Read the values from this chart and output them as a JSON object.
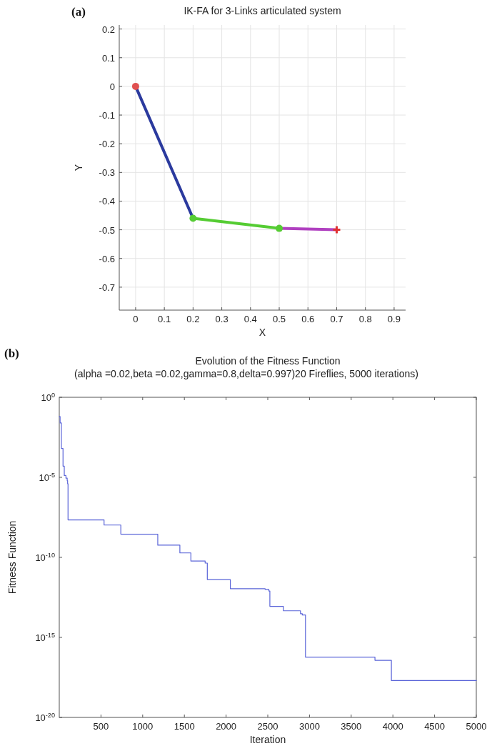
{
  "chart_data": [
    {
      "type": "line",
      "title": "IK-FA for 3-Links articulated system",
      "xlabel": "X",
      "ylabel": "Y",
      "annotations": [
        "(a)"
      ],
      "xlim": [
        -0.057,
        0.94
      ],
      "xticks": [
        0,
        0.1,
        0.2,
        0.3,
        0.4,
        0.5,
        0.6,
        0.7,
        0.8,
        0.9
      ],
      "ylim": [
        -0.78,
        0.214
      ],
      "yticks": [
        -0.7,
        -0.6,
        -0.5,
        -0.4,
        -0.3,
        -0.2,
        -0.1,
        0,
        0.1,
        0.2
      ],
      "grid": true,
      "series": [
        {
          "color": "#2b3a9e",
          "x": [
            0,
            0.2
          ],
          "values": [
            0,
            -0.46
          ]
        },
        {
          "color": "#55cc33",
          "x": [
            0.2,
            0.5
          ],
          "values": [
            -0.46,
            -0.495
          ]
        },
        {
          "color": "#b040c0",
          "x": [
            0.5,
            0.7
          ],
          "values": [
            -0.495,
            -0.5
          ]
        },
        {
          "type": "scatter",
          "marker": "circle",
          "color": "#e05050",
          "x": [
            0
          ],
          "values": [
            0
          ]
        },
        {
          "type": "scatter",
          "marker": "circle",
          "color": "#55cc33",
          "x": [
            0.2,
            0.5
          ],
          "values": [
            -0.46,
            -0.495
          ]
        },
        {
          "type": "scatter",
          "marker": "cross",
          "color": "#e03030",
          "x": [
            0.7
          ],
          "values": [
            -0.5
          ]
        }
      ]
    },
    {
      "type": "step",
      "title": "Evolution of the Fitness Function",
      "subtitle": "(alpha =0.02,beta =0.02,gamma=0.8,delta=0.997)20 Fireflies, 5000 iterations)",
      "xlabel": "Iteration",
      "ylabel": "Fitness Function",
      "annotations": [
        "(b)"
      ],
      "log": "y",
      "xlim": [
        0,
        5000
      ],
      "xticks": [
        500,
        1000,
        1500,
        2000,
        2500,
        3000,
        3500,
        4000,
        4500,
        5000
      ],
      "ylim": [
        1e-20,
        1
      ],
      "yticks": [
        {
          "value": 1e-20,
          "label": "10$^{-20}$"
        },
        {
          "value": 1e-15,
          "label": "10$^{-15}$"
        },
        {
          "value": 1e-10,
          "label": "10$^{-10}$"
        },
        {
          "value": 1e-05,
          "label": "10$^{-5}$"
        },
        {
          "value": 1,
          "label": "10$^{0}$"
        }
      ],
      "series": [
        {
          "color": "#5a64d8",
          "x": [
            1,
            10,
            25,
            45,
            60,
            80,
            95,
            100,
            105,
            537,
            738,
            1181,
            1446,
            1578,
            1749,
            1775,
            2051,
            2468,
            2513,
            2525,
            2687,
            2892,
            2914,
            2952,
            3785,
            3982,
            5000
          ],
          "values": [
            0.063,
            0.025,
            0.00063,
            5e-05,
            1.3e-05,
            8.9e-06,
            6.3e-06,
            4e-06,
            2.2e-08,
            1.05e-08,
            2.8e-09,
            5.8e-10,
            1.9e-10,
            5.9e-11,
            4.4e-11,
            4.1e-12,
            1.1e-12,
            1e-12,
            7.9e-13,
            8.7e-14,
            4.6e-14,
            3e-14,
            2.5e-14,
            5.8e-17,
            3.7e-17,
            2e-18,
            2e-18
          ]
        }
      ]
    }
  ]
}
